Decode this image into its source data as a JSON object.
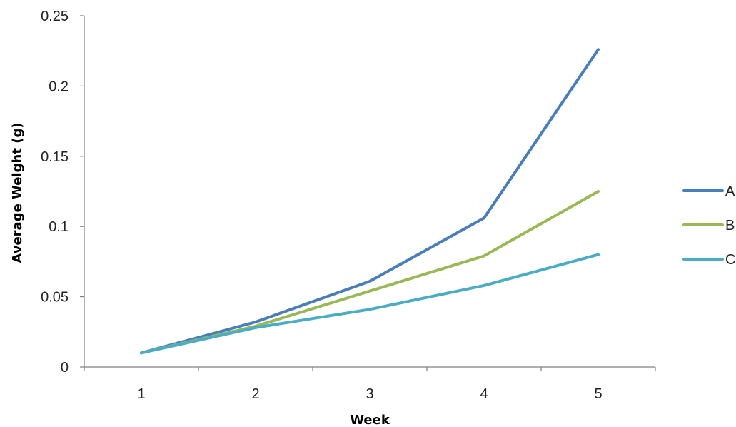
{
  "chart_data": {
    "type": "line",
    "title": "",
    "xlabel": "Week",
    "ylabel": "Average Weight (g)",
    "categories": [
      "1",
      "2",
      "3",
      "4",
      "5"
    ],
    "ylim": [
      0,
      0.25
    ],
    "yticks": [
      0,
      0.05,
      0.1,
      0.15,
      0.2,
      0.25
    ],
    "ytick_labels": [
      "0",
      "0.05",
      "0.1",
      "0.15",
      "0.2",
      "0.25"
    ],
    "grid": false,
    "legend_position": "right",
    "series": [
      {
        "name": "A",
        "color": "#4a7ebb",
        "values": [
          0.01,
          0.032,
          0.061,
          0.106,
          0.226
        ]
      },
      {
        "name": "B",
        "color": "#98b954",
        "values": [
          0.01,
          0.029,
          0.054,
          0.079,
          0.125
        ]
      },
      {
        "name": "C",
        "color": "#4bacc6",
        "values": [
          0.01,
          0.028,
          0.041,
          0.058,
          0.08
        ]
      }
    ]
  }
}
